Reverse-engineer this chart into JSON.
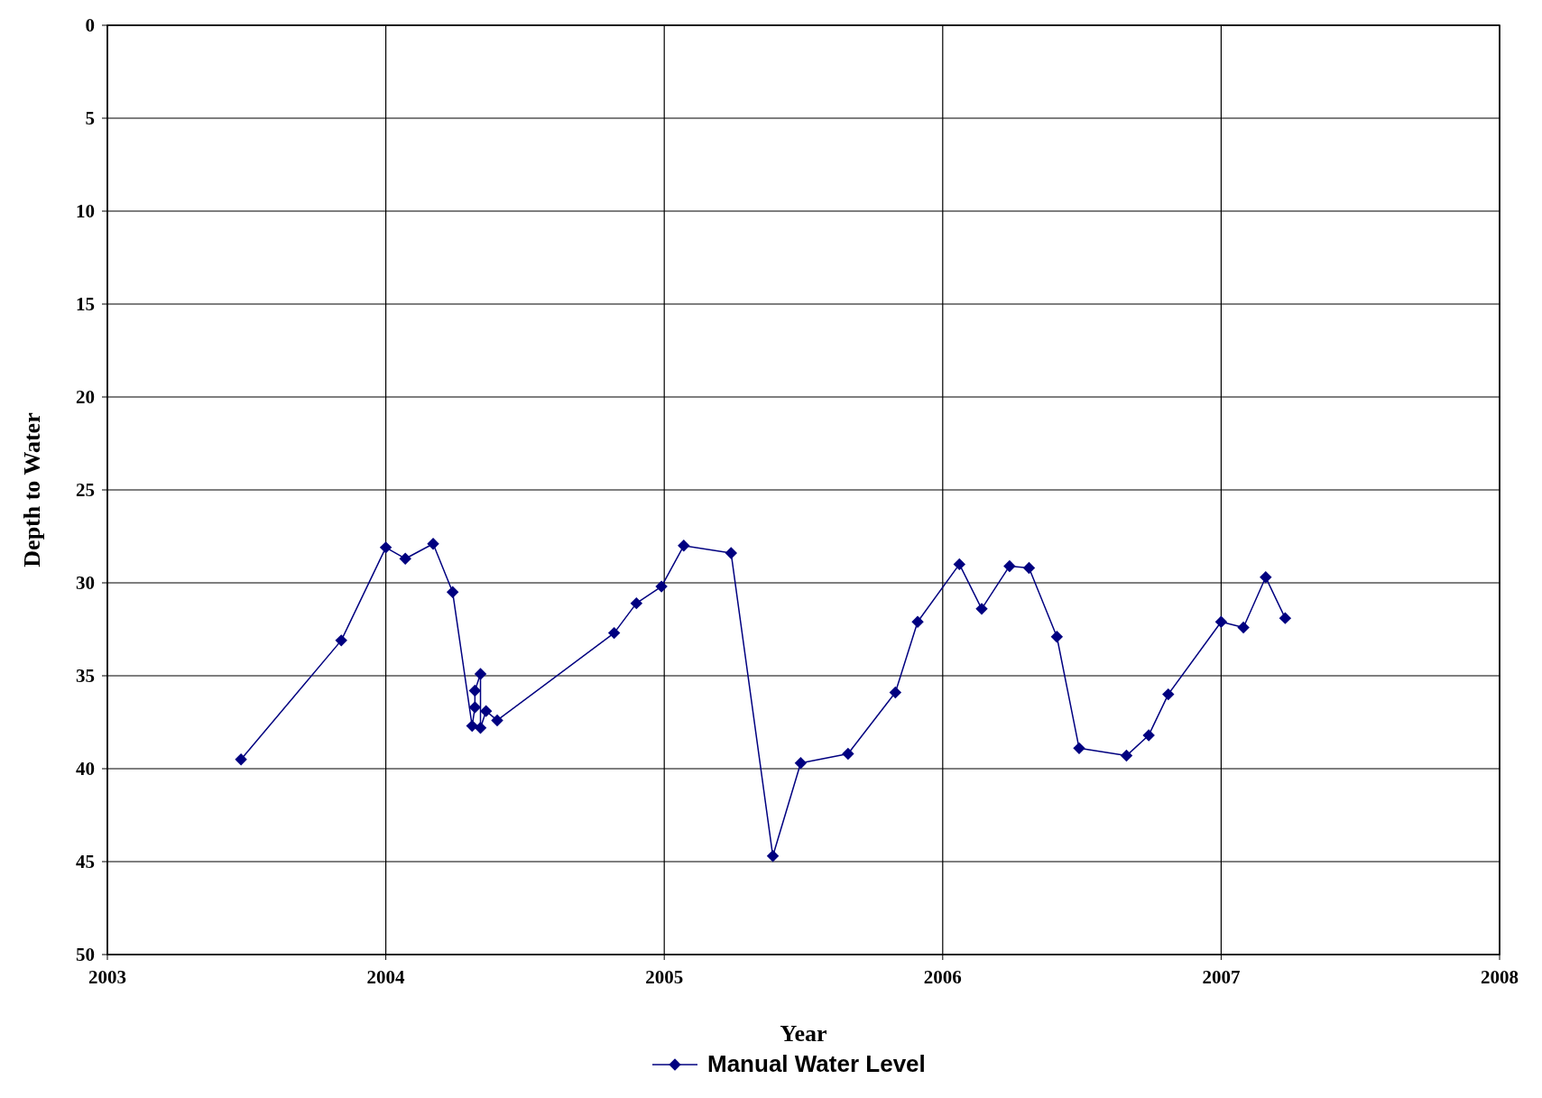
{
  "chart_data": {
    "type": "line",
    "xlabel": "Year",
    "ylabel": "Depth to Water",
    "xlim": [
      2003,
      2008
    ],
    "xticks": [
      2003,
      2004,
      2005,
      2006,
      2007,
      2008
    ],
    "ylim": [
      50,
      0
    ],
    "yticks": [
      0,
      5,
      10,
      15,
      20,
      25,
      30,
      35,
      40,
      45,
      50
    ],
    "grid": true,
    "legend": "bottom",
    "marker": "diamond",
    "line_style": "solid",
    "series": [
      {
        "name": "Manual Water Level",
        "color": "#000080",
        "x": [
          2003.48,
          2003.84,
          2004.0,
          2004.07,
          2004.17,
          2004.24,
          2004.31,
          2004.32,
          2004.32,
          2004.34,
          2004.34,
          2004.36,
          2004.4,
          2004.82,
          2004.9,
          2004.99,
          2005.07,
          2005.24,
          2005.39,
          2005.49,
          2005.66,
          2005.83,
          2005.91,
          2006.06,
          2006.14,
          2006.24,
          2006.31,
          2006.41,
          2006.49,
          2006.66,
          2006.74,
          2006.81,
          2007.0,
          2007.08,
          2007.16,
          2007.23
        ],
        "values": [
          39.5,
          33.1,
          28.1,
          28.7,
          27.9,
          30.5,
          37.7,
          36.7,
          35.8,
          34.9,
          37.8,
          36.9,
          37.4,
          32.7,
          31.1,
          30.2,
          28.0,
          28.4,
          44.7,
          39.7,
          39.2,
          35.9,
          32.1,
          29.0,
          31.4,
          29.1,
          29.2,
          32.9,
          38.9,
          39.3,
          38.2,
          36.0,
          32.1,
          32.4,
          29.7,
          31.9
        ]
      }
    ]
  }
}
